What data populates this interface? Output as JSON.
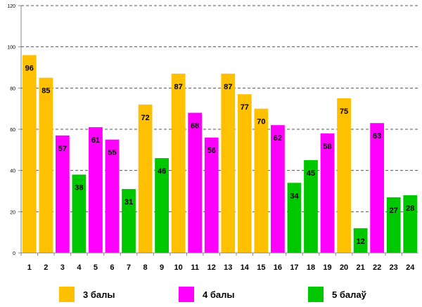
{
  "chart_data": {
    "type": "bar",
    "title": "",
    "xlabel": "",
    "ylabel": "",
    "ylim": [
      0,
      120
    ],
    "yticks": [
      0,
      20,
      40,
      60,
      80,
      100,
      120
    ],
    "grid": true,
    "legend_placement": "bottom",
    "categories": [
      "1",
      "2",
      "3",
      "4",
      "5",
      "6",
      "7",
      "8",
      "9",
      "10",
      "11",
      "12",
      "13",
      "14",
      "15",
      "16",
      "17",
      "18",
      "19",
      "20",
      "21",
      "22",
      "23",
      "24"
    ],
    "values": [
      96,
      85,
      57,
      38,
      61,
      55,
      31,
      72,
      46,
      87,
      68,
      56,
      87,
      77,
      70,
      62,
      34,
      45,
      58,
      75,
      12,
      63,
      27,
      28
    ],
    "groups": [
      "g3",
      "g3",
      "g4",
      "g5",
      "g4",
      "g4",
      "g5",
      "g3",
      "g5",
      "g3",
      "g4",
      "g4",
      "g3",
      "g3",
      "g3",
      "g4",
      "g5",
      "g5",
      "g4",
      "g3",
      "g5",
      "g4",
      "g5",
      "g5"
    ],
    "series": [
      {
        "key": "g3",
        "name": "3 балы",
        "color": "#FFC000"
      },
      {
        "key": "g4",
        "name": "4 балы",
        "color": "#FF00FF"
      },
      {
        "key": "g5",
        "name": "5 балаў",
        "color": "#00C800"
      }
    ]
  }
}
